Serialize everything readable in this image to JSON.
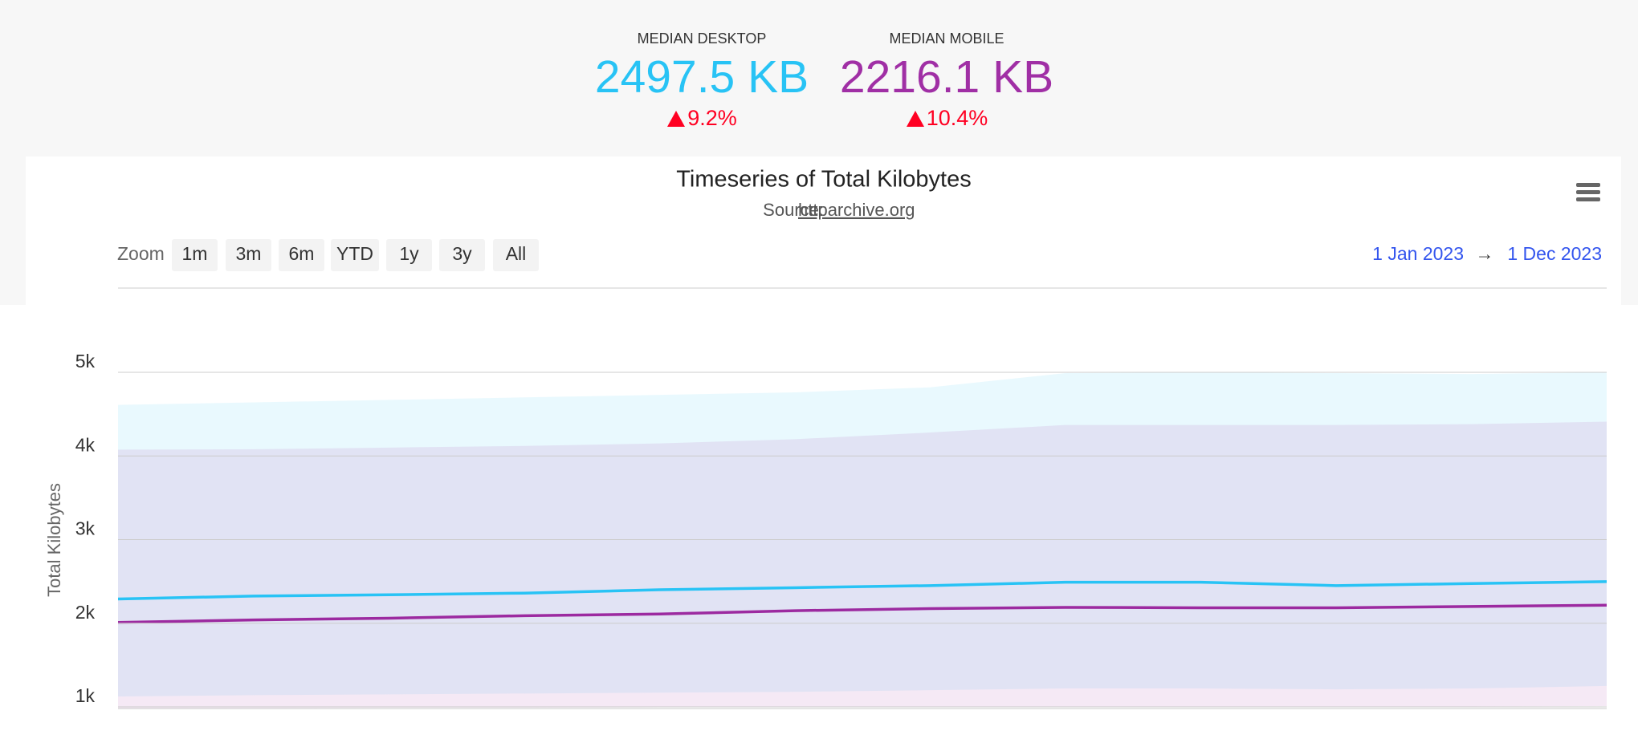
{
  "metrics": [
    {
      "label": "MEDIAN DESKTOP",
      "value": "2497.5 KB",
      "change": "9.2%",
      "color": "#28c3f5"
    },
    {
      "label": "MEDIAN MOBILE",
      "value": "2216.1 KB",
      "change": "10.4%",
      "color": "#a02fa5"
    }
  ],
  "toolbar": {
    "zoom_label": "Zoom",
    "zoom_buttons": [
      "1m",
      "3m",
      "6m",
      "YTD",
      "1y",
      "3y",
      "All"
    ],
    "range": {
      "from": "1 Jan 2023",
      "separator": "→",
      "to": "1 Dec 2023"
    }
  },
  "chart_data": {
    "type": "line",
    "title": "Timeseries of Total Kilobytes",
    "subtitle": "Source:",
    "subtitle_link": "httparchive.org",
    "y_label": "Total Kilobytes",
    "series": [
      {
        "color": "#28c3f5",
        "values": [
          2290,
          2325,
          2340,
          2360,
          2400,
          2425,
          2450,
          2490,
          2490,
          2450,
          2475,
          2497.5
        ]
      },
      {
        "color": "#9c2aa0",
        "values": [
          2010,
          2040,
          2060,
          2090,
          2110,
          2150,
          2175,
          2190,
          2185,
          2185,
          2200,
          2216.1
        ]
      }
    ],
    "bands": [
      {
        "color": "#28c3f5",
        "low": [
          1125,
          1140,
          1150,
          1160,
          1170,
          1180,
          1200,
          1220,
          1220,
          1210,
          1220,
          1250
        ],
        "high": [
          4610,
          4640,
          4670,
          4700,
          4730,
          4760,
          4820,
          4990,
          5000,
          4990,
          4980,
          5000
        ]
      },
      {
        "color": "#9c2aa0",
        "low": [
          980,
          985,
          990,
          990,
          995,
          1000,
          1000,
          1005,
          1005,
          1000,
          1005,
          1010
        ],
        "high": [
          4075,
          4080,
          4100,
          4120,
          4150,
          4200,
          4280,
          4370,
          4370,
          4370,
          4380,
          4410
        ]
      }
    ],
    "ylim": [
      975,
      5000
    ],
    "yticks": [
      {
        "value": 1000,
        "label": "1k"
      },
      {
        "value": 2000,
        "label": "2k"
      },
      {
        "value": 3000,
        "label": "3k"
      },
      {
        "value": 4000,
        "label": "4k"
      },
      {
        "value": 5000,
        "label": "5k"
      }
    ],
    "grid": true
  }
}
